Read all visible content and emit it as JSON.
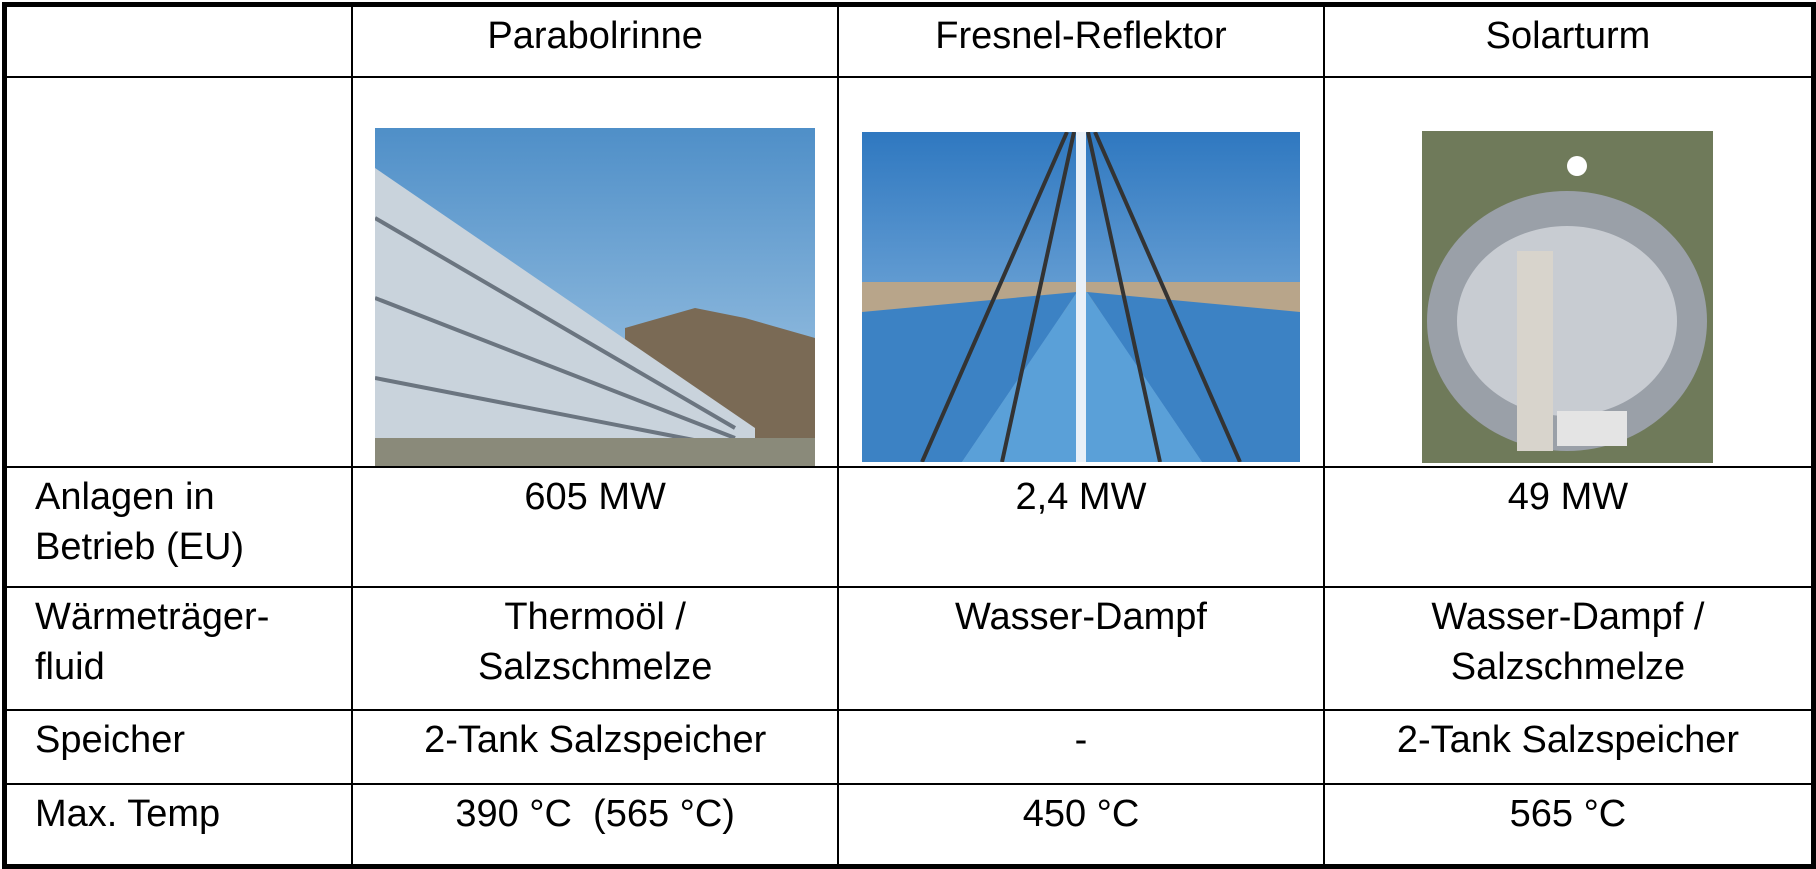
{
  "table": {
    "columns": [
      "Parabolrinne",
      "Fresnel-Reflektor",
      "Solarturm"
    ],
    "rows": [
      {
        "label": [
          "Anlagen in",
          "Betrieb (EU)"
        ],
        "cells": [
          [
            "605 MW"
          ],
          [
            "2,4 MW"
          ],
          [
            "49 MW"
          ]
        ]
      },
      {
        "label": [
          "Wärmeträger-",
          "fluid"
        ],
        "cells": [
          [
            "Thermoöl /",
            "Salzschmelze"
          ],
          [
            "Wasser-Dampf"
          ],
          [
            "Wasser-Dampf /",
            "Salzschmelze"
          ]
        ]
      },
      {
        "label": [
          "Speicher"
        ],
        "cells": [
          [
            "2-Tank Salzspeicher"
          ],
          [
            "-"
          ],
          [
            "2-Tank Salzspeicher"
          ]
        ]
      },
      {
        "label": [
          "Max. Temp"
        ],
        "cells": [
          [
            "390 °C  (565 °C)"
          ],
          [
            "450 °C"
          ],
          [
            "565 °C"
          ]
        ]
      }
    ]
  }
}
